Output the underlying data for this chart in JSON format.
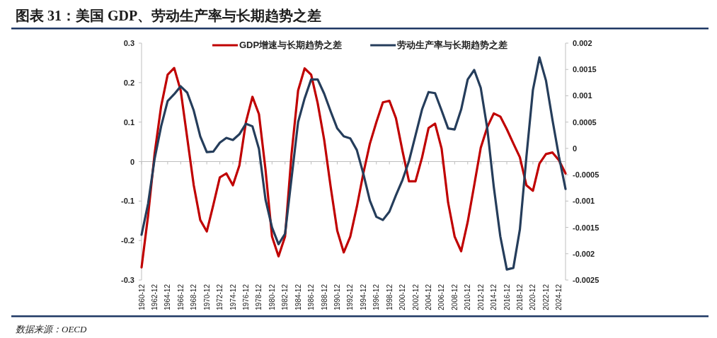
{
  "chart_data": {
    "type": "line",
    "title": "图表 31：美国 GDP、劳动生产率与长期趋势之差",
    "annotations": [
      "数据来源：OECD"
    ],
    "categories": [
      "1960-12",
      null,
      "1962-12",
      null,
      "1964-12",
      null,
      "1966-12",
      null,
      "1968-12",
      null,
      "1970-12",
      null,
      "1972-12",
      null,
      "1974-12",
      null,
      "1976-12",
      null,
      "1978-12",
      null,
      "1980-12",
      null,
      "1982-12",
      null,
      "1984-12",
      null,
      "1986-12",
      null,
      "1988-12",
      null,
      "1990-12",
      null,
      "1992-12",
      null,
      "1994-12",
      null,
      "1996-12",
      null,
      "1998-12",
      null,
      "2000-12",
      null,
      "2002-12",
      null,
      "2004-12",
      null,
      "2006-12",
      null,
      "2008-12",
      null,
      "2010-12",
      null,
      "2012-12",
      null,
      "2014-12",
      null,
      "2016-12",
      null,
      "2018-12",
      null,
      "2020-12",
      null,
      "2022-12",
      null,
      "2024-12",
      null
    ],
    "series": [
      {
        "name": "GDP增速与长期趋势之差",
        "color": "#c00000",
        "values": [
          -0.268,
          -0.137,
          0.02,
          0.14,
          0.22,
          0.237,
          0.18,
          0.06,
          -0.06,
          -0.148,
          -0.177,
          -0.11,
          -0.04,
          -0.03,
          -0.06,
          -0.01,
          0.1,
          0.164,
          0.12,
          -0.02,
          -0.19,
          -0.24,
          -0.19,
          0.02,
          0.18,
          0.236,
          0.22,
          0.148,
          0.055,
          -0.065,
          -0.175,
          -0.23,
          -0.19,
          -0.115,
          -0.03,
          0.045,
          0.1,
          0.15,
          0.154,
          0.11,
          0.027,
          -0.05,
          -0.05,
          0.01,
          0.085,
          0.096,
          0.033,
          -0.104,
          -0.19,
          -0.227,
          -0.153,
          -0.06,
          0.035,
          0.087,
          0.122,
          0.114,
          0.082,
          0.046,
          0.011,
          -0.06,
          -0.074,
          -0.005,
          0.019,
          0.023,
          0.003,
          -0.03
        ]
      },
      {
        "name": "劳动生产率与长期趋势之差",
        "color": "#253d5b",
        "axis": "y2",
        "values": [
          -0.00164,
          -0.00105,
          -0.0002,
          0.00042,
          0.0009,
          0.00103,
          0.00118,
          0.00106,
          0.00072,
          0.00023,
          -7e-05,
          -6e-05,
          0.00011,
          0.0002,
          0.00016,
          0.00027,
          0.00047,
          0.00042,
          -1e-05,
          -0.00097,
          -0.0015,
          -0.00182,
          -0.00162,
          -0.00056,
          0.0005,
          0.00095,
          0.00131,
          0.00131,
          0.00104,
          0.0007,
          0.00038,
          0.00023,
          0.00019,
          -3e-05,
          -0.00048,
          -0.00099,
          -0.0013,
          -0.00136,
          -0.0012,
          -0.00089,
          -0.0006,
          -0.00024,
          0.00025,
          0.00074,
          0.00107,
          0.00105,
          0.00072,
          0.00038,
          0.00036,
          0.00074,
          0.00131,
          0.00149,
          0.00115,
          0.00038,
          -0.00073,
          -0.00167,
          -0.0023,
          -0.00227,
          -0.00154,
          -0.00016,
          0.00111,
          0.00173,
          0.00129,
          0.00054,
          -0.00016,
          -0.00077
        ]
      }
    ],
    "ylim": [
      -0.3,
      0.3
    ],
    "yticks": [
      -0.3,
      -0.2,
      -0.1,
      0,
      0.1,
      0.2,
      0.3
    ],
    "y2lim": [
      -0.0025,
      0.002
    ],
    "y2ticks": [
      -0.0025,
      -0.002,
      -0.0015,
      -0.001,
      -0.0005,
      0,
      0.0005,
      0.001,
      0.0015,
      0.002
    ],
    "legend": "top"
  }
}
